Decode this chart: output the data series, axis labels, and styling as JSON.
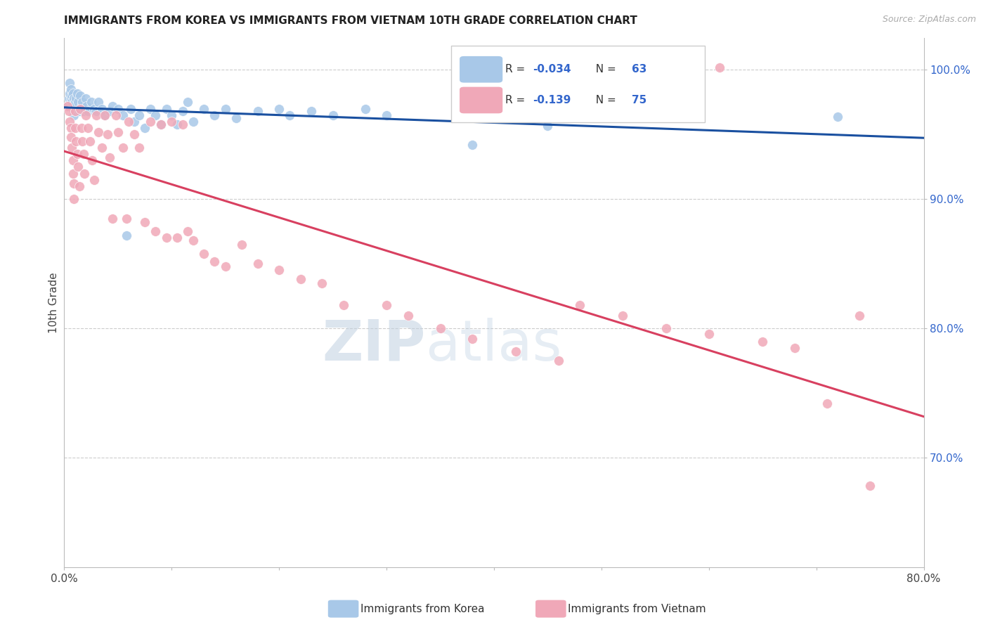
{
  "title": "IMMIGRANTS FROM KOREA VS IMMIGRANTS FROM VIETNAM 10TH GRADE CORRELATION CHART",
  "source": "Source: ZipAtlas.com",
  "ylabel": "10th Grade",
  "legend_korea": "Immigrants from Korea",
  "legend_vietnam": "Immigrants from Vietnam",
  "R_korea": -0.034,
  "N_korea": 63,
  "R_vietnam": -0.139,
  "N_vietnam": 75,
  "color_korea": "#a8c8e8",
  "color_vietnam": "#f0a8b8",
  "line_color_korea": "#1a50a0",
  "line_color_vietnam": "#d84060",
  "xmin": 0.0,
  "xmax": 0.8,
  "ymin": 0.615,
  "ymax": 1.025,
  "right_ytick_vals": [
    0.7,
    0.8,
    0.9,
    1.0
  ],
  "right_yticklabels": [
    "70.0%",
    "80.0%",
    "90.0%",
    "100.0%"
  ],
  "korea_x": [
    0.003,
    0.004,
    0.005,
    0.005,
    0.006,
    0.006,
    0.007,
    0.007,
    0.008,
    0.008,
    0.009,
    0.009,
    0.01,
    0.01,
    0.011,
    0.012,
    0.013,
    0.014,
    0.015,
    0.016,
    0.017,
    0.018,
    0.02,
    0.021,
    0.022,
    0.025,
    0.028,
    0.03,
    0.032,
    0.035,
    0.038,
    0.042,
    0.045,
    0.05,
    0.055,
    0.058,
    0.062,
    0.065,
    0.07,
    0.075,
    0.08,
    0.085,
    0.09,
    0.095,
    0.1,
    0.105,
    0.11,
    0.115,
    0.12,
    0.13,
    0.14,
    0.15,
    0.16,
    0.18,
    0.2,
    0.21,
    0.23,
    0.25,
    0.28,
    0.3,
    0.38,
    0.45,
    0.72
  ],
  "korea_y": [
    0.972,
    0.978,
    0.982,
    0.99,
    0.985,
    0.978,
    0.98,
    0.975,
    0.982,
    0.97,
    0.978,
    0.965,
    0.975,
    0.968,
    0.978,
    0.982,
    0.975,
    0.968,
    0.98,
    0.972,
    0.975,
    0.968,
    0.978,
    0.972,
    0.968,
    0.975,
    0.97,
    0.968,
    0.975,
    0.97,
    0.965,
    0.968,
    0.972,
    0.97,
    0.965,
    0.872,
    0.97,
    0.96,
    0.965,
    0.955,
    0.97,
    0.965,
    0.958,
    0.97,
    0.965,
    0.958,
    0.968,
    0.975,
    0.96,
    0.97,
    0.965,
    0.97,
    0.963,
    0.968,
    0.97,
    0.965,
    0.968,
    0.965,
    0.97,
    0.965,
    0.942,
    0.957,
    0.964
  ],
  "vietnam_x": [
    0.003,
    0.004,
    0.005,
    0.006,
    0.006,
    0.007,
    0.008,
    0.008,
    0.009,
    0.009,
    0.01,
    0.01,
    0.011,
    0.012,
    0.013,
    0.014,
    0.015,
    0.016,
    0.017,
    0.018,
    0.019,
    0.02,
    0.022,
    0.024,
    0.026,
    0.028,
    0.03,
    0.032,
    0.035,
    0.038,
    0.04,
    0.042,
    0.045,
    0.048,
    0.05,
    0.055,
    0.058,
    0.06,
    0.065,
    0.07,
    0.075,
    0.08,
    0.085,
    0.09,
    0.095,
    0.1,
    0.105,
    0.11,
    0.115,
    0.12,
    0.13,
    0.14,
    0.15,
    0.165,
    0.18,
    0.2,
    0.22,
    0.24,
    0.26,
    0.3,
    0.32,
    0.35,
    0.38,
    0.42,
    0.46,
    0.48,
    0.52,
    0.56,
    0.6,
    0.61,
    0.65,
    0.68,
    0.71,
    0.74,
    0.75
  ],
  "vietnam_y": [
    0.972,
    0.968,
    0.96,
    0.955,
    0.948,
    0.94,
    0.93,
    0.92,
    0.912,
    0.9,
    0.968,
    0.955,
    0.945,
    0.935,
    0.925,
    0.91,
    0.97,
    0.955,
    0.945,
    0.935,
    0.92,
    0.965,
    0.955,
    0.945,
    0.93,
    0.915,
    0.965,
    0.952,
    0.94,
    0.965,
    0.95,
    0.932,
    0.885,
    0.965,
    0.952,
    0.94,
    0.885,
    0.96,
    0.95,
    0.94,
    0.882,
    0.96,
    0.875,
    0.958,
    0.87,
    0.96,
    0.87,
    0.958,
    0.875,
    0.868,
    0.858,
    0.852,
    0.848,
    0.865,
    0.85,
    0.845,
    0.838,
    0.835,
    0.818,
    0.818,
    0.81,
    0.8,
    0.792,
    0.782,
    0.775,
    0.818,
    0.81,
    0.8,
    0.796,
    1.002,
    0.79,
    0.785,
    0.742,
    0.81,
    0.678
  ]
}
